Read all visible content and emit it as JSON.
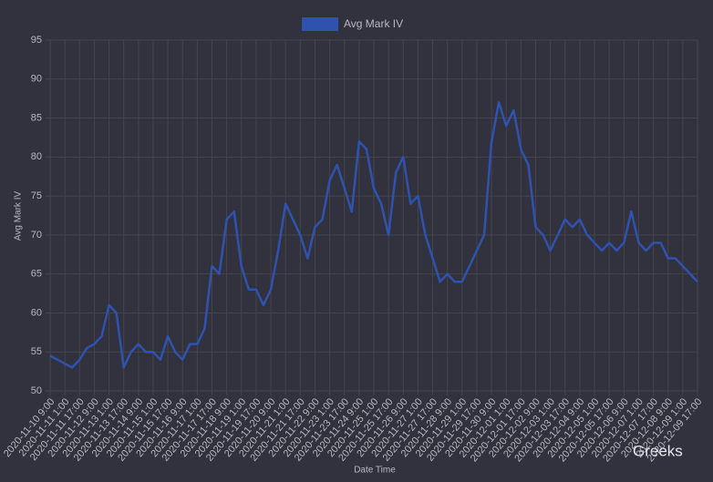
{
  "chart_data": {
    "type": "line",
    "xlabel": "Date Time",
    "ylabel": "Avg Mark IV",
    "annotation": "Greeks",
    "legend": "top",
    "ylim": [
      50,
      95
    ],
    "yticks": [
      50,
      55,
      60,
      65,
      70,
      75,
      80,
      85,
      90,
      95
    ],
    "grid": true,
    "categories": [
      "2020-11-10 9:00",
      null,
      "2020-11-11 1:00",
      null,
      "2020-11-11 17:00",
      null,
      "2020-11-12 9:00",
      null,
      "2020-11-13 1:00",
      null,
      "2020-11-13 17:00",
      null,
      "2020-11-14 9:00",
      null,
      "2020-11-15 1:00",
      null,
      "2020-11-15 17:00",
      null,
      "2020-11-16 9:00",
      null,
      "2020-11-17 1:00",
      null,
      "2020-11-17 17:00",
      null,
      "2020-11-18 9:00",
      null,
      "2020-11-19 1:00",
      null,
      "2020-11-19 17:00",
      null,
      "2020-11-20 9:00",
      null,
      "2020-11-21 1:00",
      null,
      "2020-11-21 17:00",
      null,
      "2020-11-22 9:00",
      null,
      "2020-11-23 1:00",
      null,
      "2020-11-23 17:00",
      null,
      "2020-11-24 9:00",
      null,
      "2020-11-25 1:00",
      null,
      "2020-11-25 17:00",
      null,
      "2020-11-26 9:00",
      null,
      "2020-11-27 1:00",
      null,
      "2020-11-27 17:00",
      null,
      "2020-11-28 9:00",
      null,
      "2020-11-29 1:00",
      null,
      "2020-11-29 17:00",
      null,
      "2020-11-30 9:00",
      null,
      "2020-12-01 1:00",
      null,
      "2020-12-01 17:00",
      null,
      "2020-12-02 9:00",
      null,
      "2020-12-03 1:00",
      null,
      "2020-12-03 17:00",
      null,
      "2020-12-04 9:00",
      null,
      "2020-12-05 1:00",
      null,
      "2020-12-05 17:00",
      null,
      "2020-12-06 9:00",
      null,
      "2020-12-07 1:00",
      null,
      "2020-12-07 17:00",
      null,
      "2020-12-08 9:00",
      null,
      "2020-12-09 1:00",
      null,
      "2020-12-09 17:00"
    ],
    "series": [
      {
        "name": "Avg Mark IV",
        "color": "#2f52ae",
        "values": [
          54.5,
          54,
          53.5,
          53,
          54,
          55.5,
          56,
          57,
          61,
          60,
          53,
          55,
          56,
          55,
          55,
          54,
          57,
          55,
          54,
          56,
          56,
          58,
          66,
          65,
          72,
          73,
          66,
          63,
          63,
          61,
          63,
          68,
          74,
          72,
          70,
          67,
          71,
          72,
          77,
          79,
          76,
          73,
          82,
          81,
          76,
          74,
          70,
          78,
          80,
          74,
          75,
          70,
          67,
          64,
          65,
          64,
          64,
          66,
          68,
          70,
          82,
          87,
          84,
          86,
          81,
          79,
          71,
          70,
          68,
          70,
          72,
          71,
          72,
          70,
          69,
          68,
          69,
          68,
          69,
          73,
          69,
          68,
          69,
          69,
          67,
          67,
          66,
          65,
          64
        ]
      }
    ]
  }
}
